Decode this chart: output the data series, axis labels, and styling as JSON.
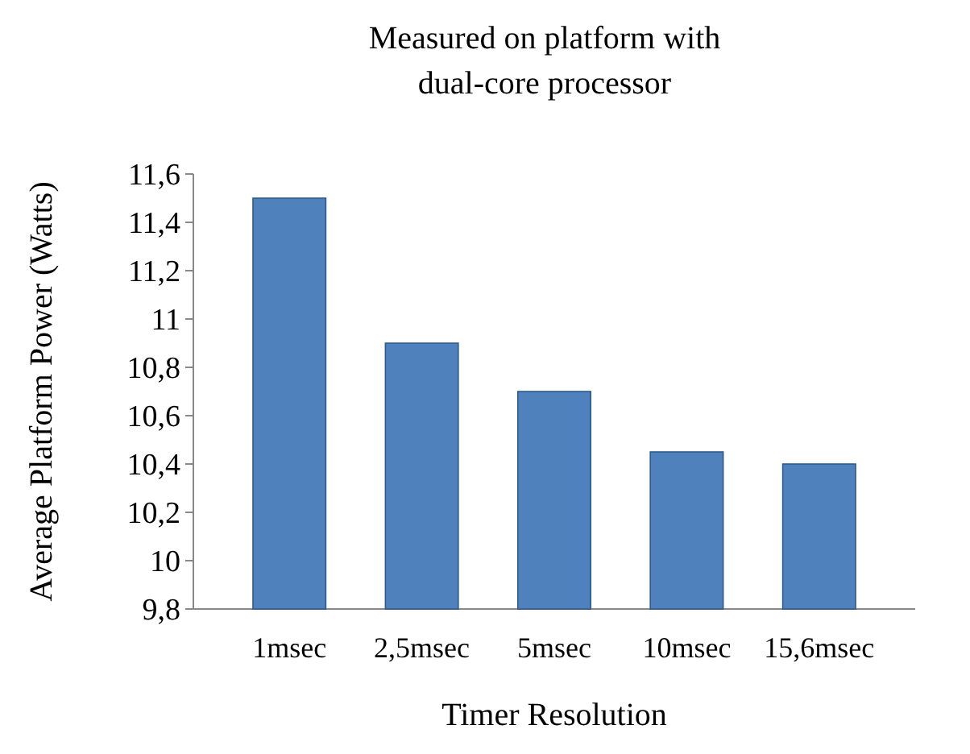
{
  "chart_data": {
    "type": "bar",
    "title": "Measured on platform with",
    "subtitle": "dual-core processor",
    "xlabel": "Timer Resolution",
    "ylabel": "Average Platform Power (Watts)",
    "categories": [
      "1msec",
      "2,5msec",
      "5msec",
      "10msec",
      "15,6msec"
    ],
    "values": [
      11.5,
      10.9,
      10.7,
      10.45,
      10.4
    ],
    "color": "#4f81bd",
    "ylim": [
      9.8,
      11.6
    ],
    "yticks": [
      {
        "value": 9.8,
        "label": "9,8"
      },
      {
        "value": 10,
        "label": "10"
      },
      {
        "value": 10.2,
        "label": "10,2"
      },
      {
        "value": 10.4,
        "label": "10,4"
      },
      {
        "value": 10.6,
        "label": "10,6"
      },
      {
        "value": 10.8,
        "label": "10,8"
      },
      {
        "value": 11,
        "label": "11"
      },
      {
        "value": 11.2,
        "label": "11,2"
      },
      {
        "value": 11.4,
        "label": "11,4"
      },
      {
        "value": 11.6,
        "label": "11,6"
      }
    ],
    "grid": false
  }
}
